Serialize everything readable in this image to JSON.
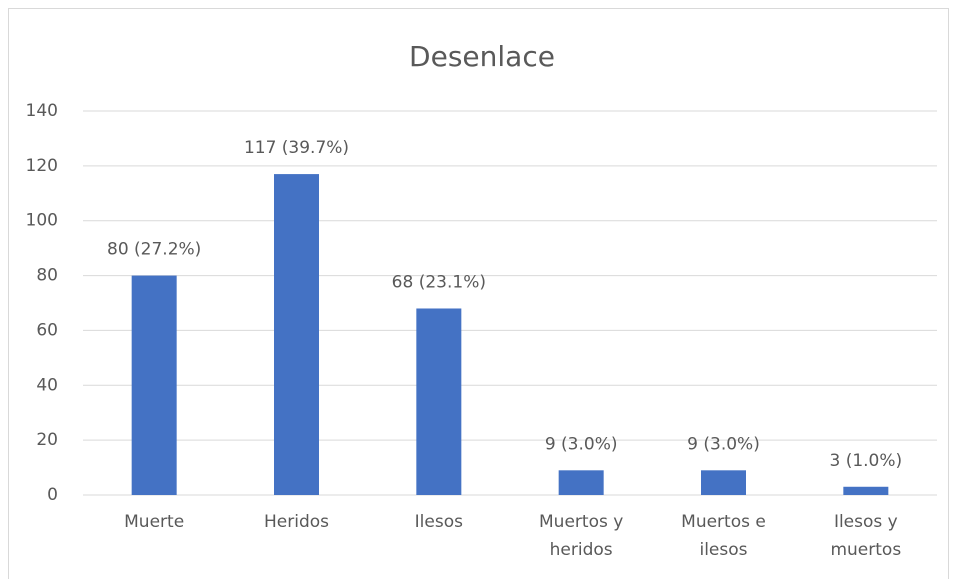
{
  "chart_data": {
    "type": "bar",
    "title": "Desenlace",
    "categories": [
      "Muerte",
      "Heridos",
      "Ilesos",
      "Muertos y heridos",
      "Muertos e ilesos",
      "Ilesos y muertos"
    ],
    "values": [
      80,
      117,
      68,
      9,
      9,
      3
    ],
    "value_labels": [
      "80 (27.2%)",
      "117 (39.7%)",
      "68 (23.1%)",
      "9 (3.0%)",
      "9 (3.0%)",
      "3 (1.0%)"
    ],
    "color": "#4472c4",
    "ylim": [
      0,
      140
    ],
    "yticks": [
      0,
      20,
      40,
      60,
      80,
      100,
      120,
      140
    ],
    "grid": true
  }
}
